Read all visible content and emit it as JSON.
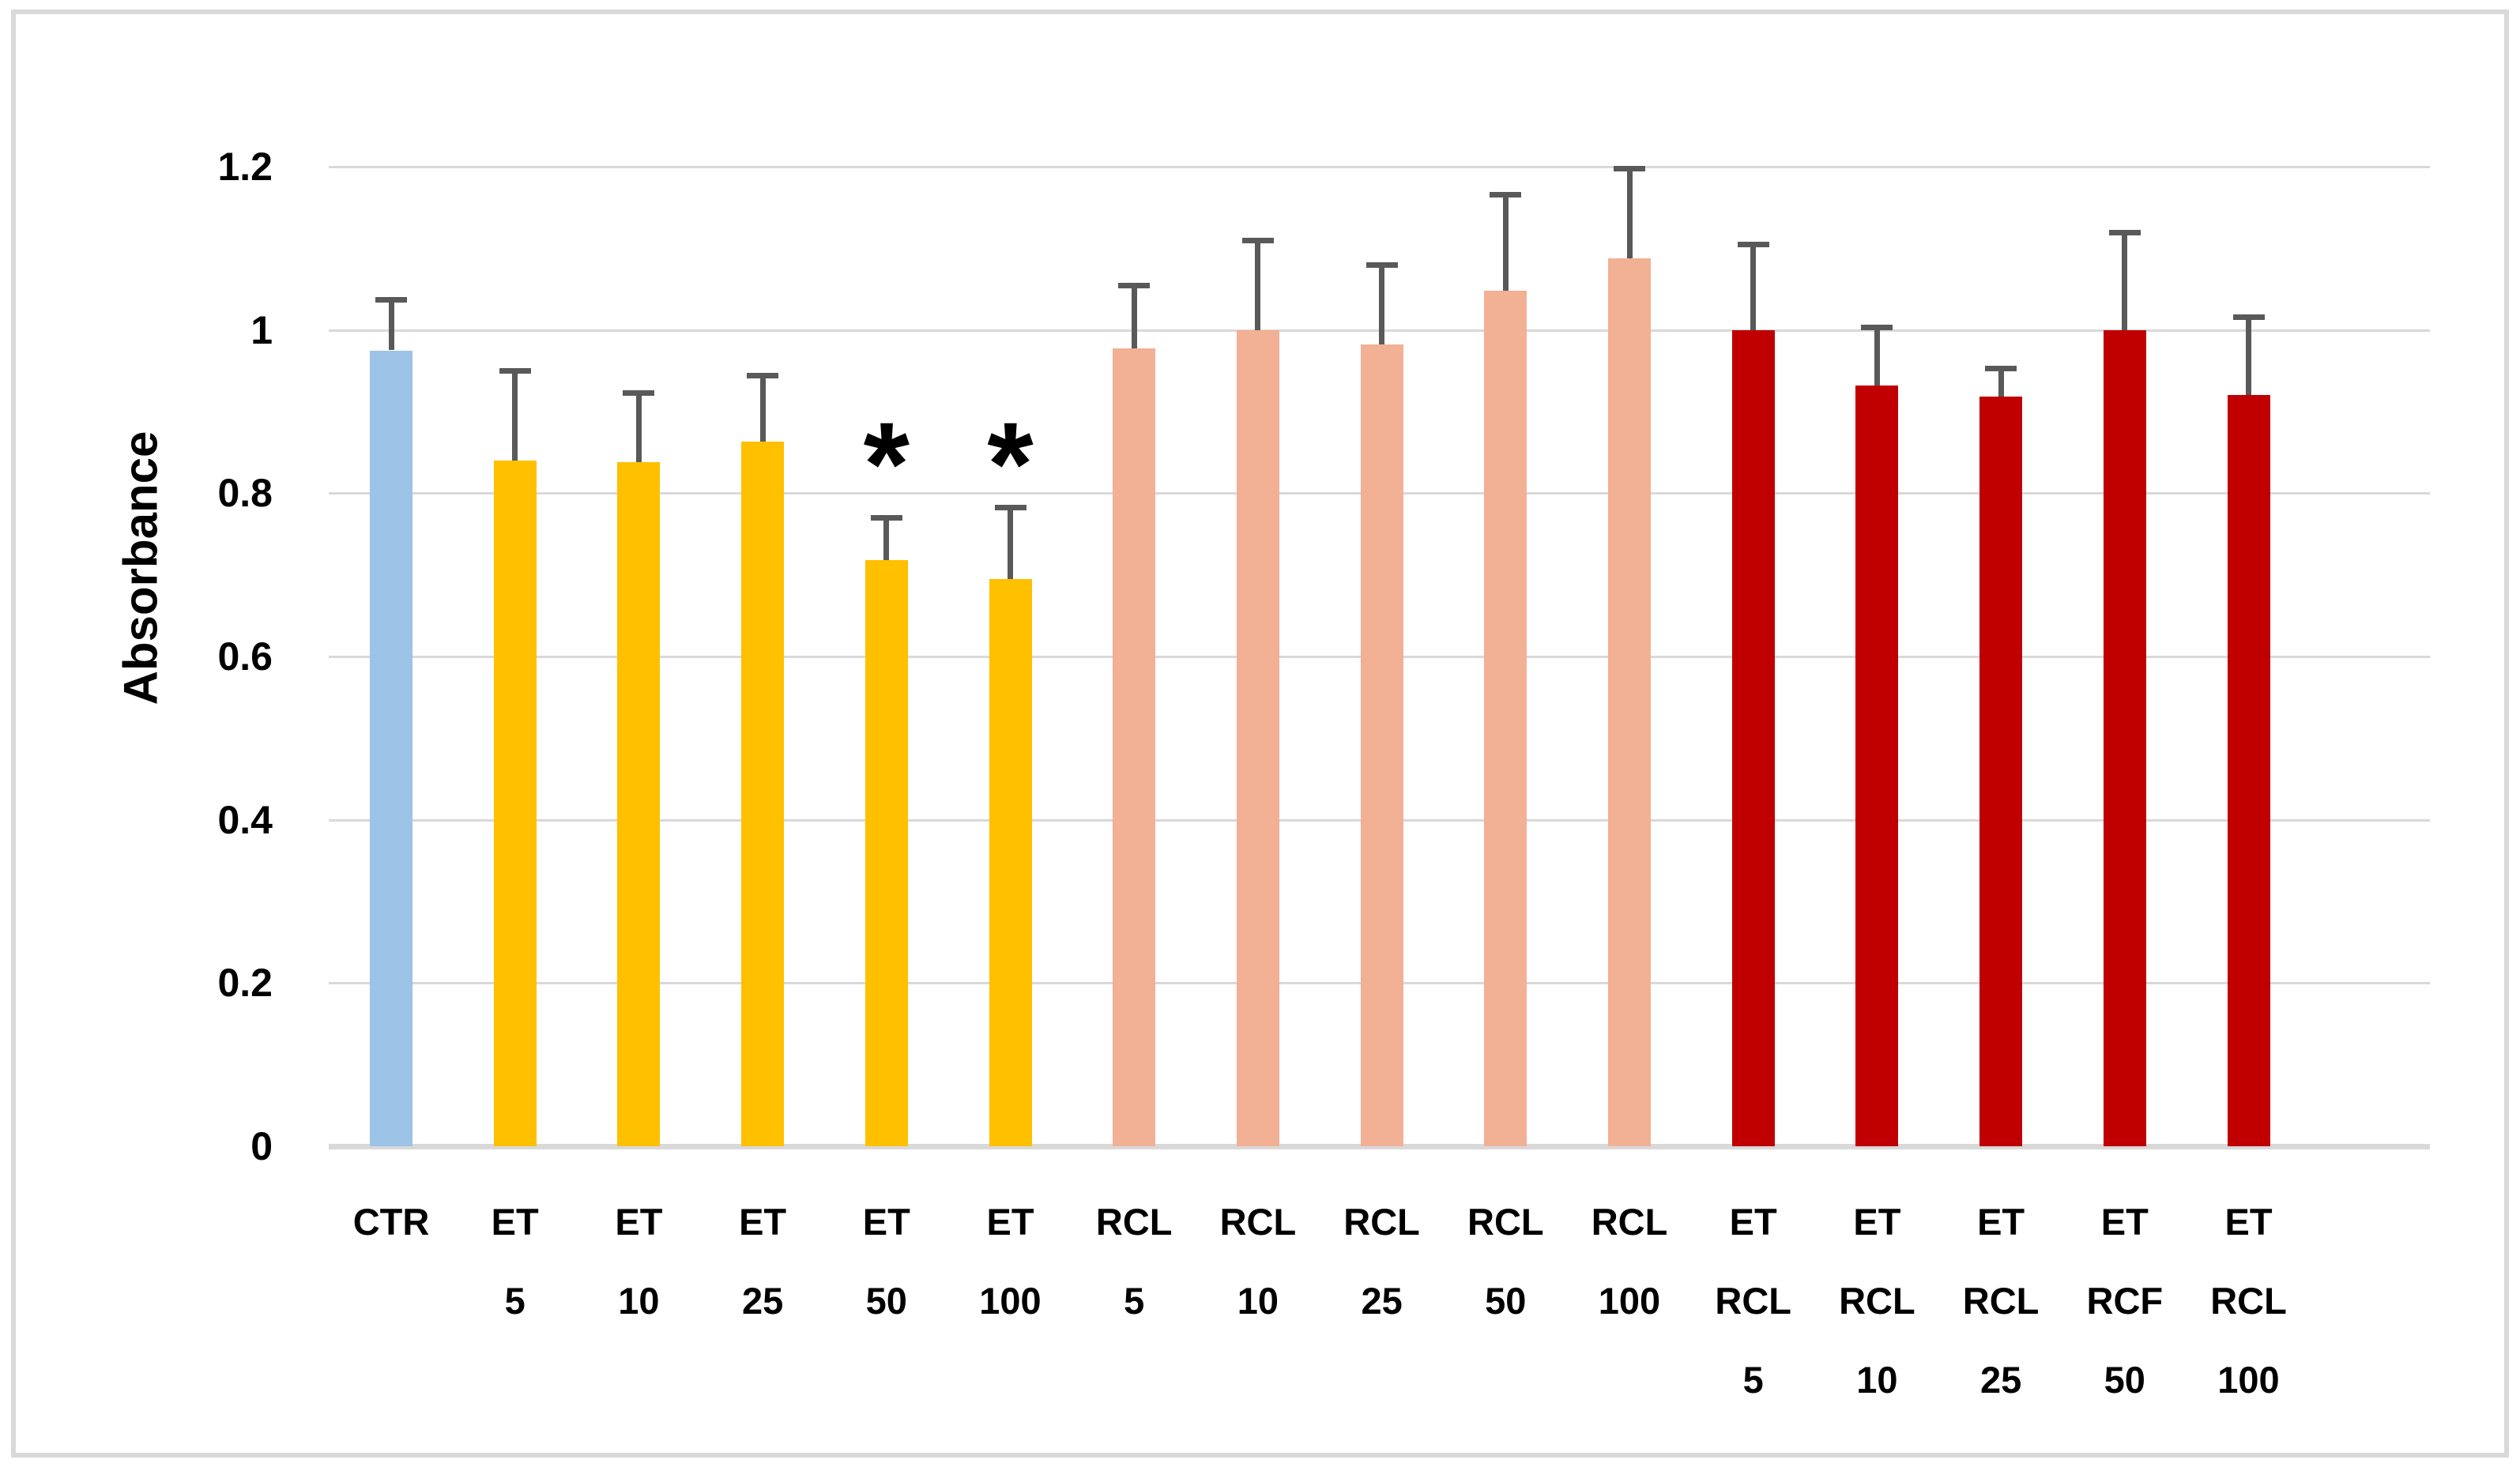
{
  "figure": {
    "background": "#ffffff",
    "frame_color": "#D9D9D9"
  },
  "style": {
    "gridline_color": "#D9D9D9",
    "axis_line_color": "#D9D9D9",
    "error_bar_color": "#595959",
    "text_color": "#000000"
  },
  "chart_data": {
    "type": "bar",
    "title": "",
    "xlabel": "",
    "ylabel": "Absorbance",
    "ylim": [
      0,
      1.2
    ],
    "ytick_labels": [
      "0",
      "0.2",
      "0.4",
      "0.6",
      "0.8",
      "1",
      "1.2"
    ],
    "yticks": [
      0,
      0.2,
      0.4,
      0.6,
      0.8,
      1,
      1.2
    ],
    "grid": "horizontal",
    "legend": "none",
    "significance_marker": "*",
    "categories": [
      "CTR",
      "ET 5",
      "ET 10",
      "ET 25",
      "ET 50",
      "ET 100",
      "RCL 5",
      "RCL 10",
      "RCL 25",
      "RCL 50",
      "RCL 100",
      "ET RCL 5",
      "ET RCL 10",
      "ET RCL 25",
      "ET RCF 50",
      "ET RCL 100"
    ],
    "bars": [
      {
        "label_lines": [
          "CTR"
        ],
        "value": 0.975,
        "error": 0.062,
        "color": "#9DC3E6",
        "significant": false
      },
      {
        "label_lines": [
          "ET",
          "5"
        ],
        "value": 0.84,
        "error": 0.11,
        "color": "#FFC000",
        "significant": false
      },
      {
        "label_lines": [
          "ET",
          "10"
        ],
        "value": 0.838,
        "error": 0.085,
        "color": "#FFC000",
        "significant": false
      },
      {
        "label_lines": [
          "ET",
          "25"
        ],
        "value": 0.863,
        "error": 0.082,
        "color": "#FFC000",
        "significant": false
      },
      {
        "label_lines": [
          "ET",
          "50"
        ],
        "value": 0.718,
        "error": 0.052,
        "color": "#FFC000",
        "significant": true
      },
      {
        "label_lines": [
          "ET",
          "100"
        ],
        "value": 0.695,
        "error": 0.088,
        "color": "#FFC000",
        "significant": true
      },
      {
        "label_lines": [
          "RCL",
          "5"
        ],
        "value": 0.977,
        "error": 0.078,
        "color": "#F2B094",
        "significant": false
      },
      {
        "label_lines": [
          "RCL",
          "10"
        ],
        "value": 1.0,
        "error": 0.11,
        "color": "#F2B094",
        "significant": false
      },
      {
        "label_lines": [
          "RCL",
          "25"
        ],
        "value": 0.982,
        "error": 0.098,
        "color": "#F2B094",
        "significant": false
      },
      {
        "label_lines": [
          "RCL",
          "50"
        ],
        "value": 1.048,
        "error": 0.118,
        "color": "#F2B094",
        "significant": false
      },
      {
        "label_lines": [
          "RCL",
          "100"
        ],
        "value": 1.088,
        "error": 0.11,
        "color": "#F2B094",
        "significant": false
      },
      {
        "label_lines": [
          "ET",
          "RCL",
          "5"
        ],
        "value": 1.0,
        "error": 0.105,
        "color": "#C00000",
        "significant": false
      },
      {
        "label_lines": [
          "ET",
          "RCL",
          "10"
        ],
        "value": 0.932,
        "error": 0.072,
        "color": "#C00000",
        "significant": false
      },
      {
        "label_lines": [
          "ET",
          "RCL",
          "25"
        ],
        "value": 0.918,
        "error": 0.035,
        "color": "#C00000",
        "significant": false
      },
      {
        "label_lines": [
          "ET",
          "RCF",
          "50"
        ],
        "value": 1.0,
        "error": 0.12,
        "color": "#C00000",
        "significant": false
      },
      {
        "label_lines": [
          "ET",
          "RCL",
          "100"
        ],
        "value": 0.92,
        "error": 0.096,
        "color": "#C00000",
        "significant": false
      }
    ],
    "series_groups": [
      {
        "name": "CTR",
        "color": "#9DC3E6"
      },
      {
        "name": "ET",
        "color": "#FFC000"
      },
      {
        "name": "RCL",
        "color": "#F2B094"
      },
      {
        "name": "ET RCL",
        "color": "#C00000"
      }
    ]
  }
}
